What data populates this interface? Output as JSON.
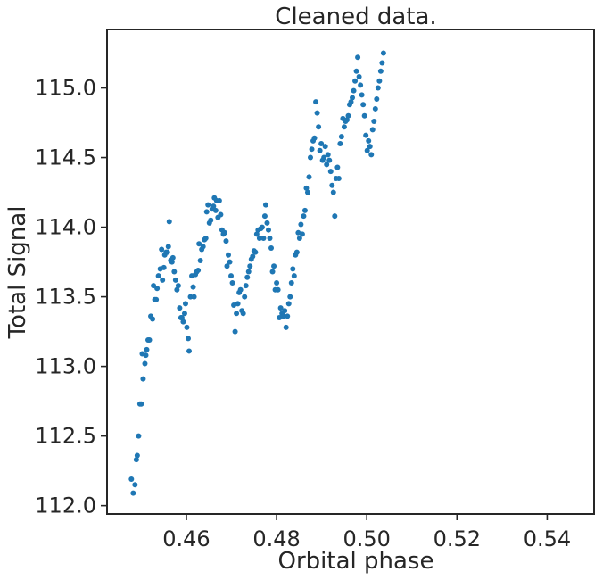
{
  "chart_data": {
    "type": "scatter",
    "title": "Cleaned data.",
    "xlabel": "Orbital phase",
    "ylabel": "Total Signal",
    "xlim": [
      0.4424,
      0.5504
    ],
    "ylim": [
      111.94,
      115.42
    ],
    "xticks": [
      0.46,
      0.48,
      0.5,
      0.52,
      0.54
    ],
    "xtick_labels": [
      "0.46",
      "0.48",
      "0.50",
      "0.52",
      "0.54"
    ],
    "yticks": [
      112.0,
      112.5,
      113.0,
      113.5,
      114.0,
      114.5,
      115.0
    ],
    "ytick_labels": [
      "112.0",
      "112.5",
      "113.0",
      "113.5",
      "114.0",
      "114.5",
      "115.0"
    ],
    "grid": false,
    "marker_color": "#1f77b4",
    "series": [
      {
        "points": [
          [
            0.4478,
            112.19
          ],
          [
            0.4482,
            112.09
          ],
          [
            0.4486,
            112.15
          ],
          [
            0.4489,
            112.33
          ],
          [
            0.4491,
            112.36
          ],
          [
            0.4494,
            112.5
          ],
          [
            0.4497,
            112.73
          ],
          [
            0.45,
            112.73
          ],
          [
            0.4502,
            113.09
          ],
          [
            0.4504,
            112.91
          ],
          [
            0.4508,
            113.02
          ],
          [
            0.451,
            113.08
          ],
          [
            0.4512,
            113.12
          ],
          [
            0.4515,
            113.19
          ],
          [
            0.4518,
            113.19
          ],
          [
            0.4521,
            113.36
          ],
          [
            0.4525,
            113.34
          ],
          [
            0.4527,
            113.58
          ],
          [
            0.453,
            113.48
          ],
          [
            0.4533,
            113.48
          ],
          [
            0.4535,
            113.56
          ],
          [
            0.4538,
            113.65
          ],
          [
            0.4542,
            113.7
          ],
          [
            0.4545,
            113.84
          ],
          [
            0.4547,
            113.62
          ],
          [
            0.455,
            113.71
          ],
          [
            0.4552,
            113.8
          ],
          [
            0.4555,
            113.82
          ],
          [
            0.4558,
            113.82
          ],
          [
            0.456,
            113.86
          ],
          [
            0.4562,
            114.04
          ],
          [
            0.4565,
            113.76
          ],
          [
            0.4568,
            113.75
          ],
          [
            0.457,
            113.78
          ],
          [
            0.4573,
            113.68
          ],
          [
            0.4576,
            113.62
          ],
          [
            0.4579,
            113.55
          ],
          [
            0.4582,
            113.58
          ],
          [
            0.4585,
            113.42
          ],
          [
            0.4588,
            113.35
          ],
          [
            0.459,
            113.35
          ],
          [
            0.4593,
            113.32
          ],
          [
            0.4596,
            113.38
          ],
          [
            0.4598,
            113.45
          ],
          [
            0.4601,
            113.28
          ],
          [
            0.4604,
            113.2
          ],
          [
            0.4606,
            113.11
          ],
          [
            0.4609,
            113.5
          ],
          [
            0.4612,
            113.65
          ],
          [
            0.4615,
            113.57
          ],
          [
            0.4617,
            113.5
          ],
          [
            0.462,
            113.66
          ],
          [
            0.4623,
            113.68
          ],
          [
            0.4626,
            113.69
          ],
          [
            0.4628,
            113.88
          ],
          [
            0.4631,
            113.76
          ],
          [
            0.4634,
            113.84
          ],
          [
            0.4637,
            113.86
          ],
          [
            0.464,
            113.91
          ],
          [
            0.4643,
            113.92
          ],
          [
            0.4645,
            114.11
          ],
          [
            0.4648,
            114.16
          ],
          [
            0.4651,
            114.03
          ],
          [
            0.4654,
            114.05
          ],
          [
            0.4657,
            114.13
          ],
          [
            0.466,
            114.15
          ],
          [
            0.4662,
            114.21
          ],
          [
            0.4665,
            114.12
          ],
          [
            0.4667,
            114.19
          ],
          [
            0.467,
            114.07
          ],
          [
            0.4673,
            114.19
          ],
          [
            0.4676,
            114.09
          ],
          [
            0.4679,
            113.98
          ],
          [
            0.4682,
            113.95
          ],
          [
            0.4685,
            113.96
          ],
          [
            0.4688,
            113.9
          ],
          [
            0.469,
            113.72
          ],
          [
            0.4693,
            113.8
          ],
          [
            0.4696,
            113.75
          ],
          [
            0.4699,
            113.65
          ],
          [
            0.4702,
            113.6
          ],
          [
            0.4705,
            113.44
          ],
          [
            0.4708,
            113.25
          ],
          [
            0.4711,
            113.38
          ],
          [
            0.4714,
            113.45
          ],
          [
            0.4717,
            113.53
          ],
          [
            0.472,
            113.55
          ],
          [
            0.4723,
            113.4
          ],
          [
            0.4726,
            113.38
          ],
          [
            0.4729,
            113.5
          ],
          [
            0.4732,
            113.58
          ],
          [
            0.4735,
            113.64
          ],
          [
            0.4738,
            113.68
          ],
          [
            0.4741,
            113.72
          ],
          [
            0.4744,
            113.77
          ],
          [
            0.4747,
            113.79
          ],
          [
            0.475,
            113.83
          ],
          [
            0.4753,
            113.82
          ],
          [
            0.4756,
            113.95
          ],
          [
            0.4759,
            113.98
          ],
          [
            0.4762,
            113.92
          ],
          [
            0.4765,
            113.99
          ],
          [
            0.4768,
            114.0
          ],
          [
            0.4771,
            113.92
          ],
          [
            0.4774,
            114.08
          ],
          [
            0.4776,
            114.16
          ],
          [
            0.4779,
            114.03
          ],
          [
            0.4782,
            113.98
          ],
          [
            0.4785,
            113.92
          ],
          [
            0.4788,
            113.85
          ],
          [
            0.4791,
            113.68
          ],
          [
            0.4794,
            113.72
          ],
          [
            0.4797,
            113.55
          ],
          [
            0.48,
            113.6
          ],
          [
            0.4803,
            113.55
          ],
          [
            0.4806,
            113.35
          ],
          [
            0.4809,
            113.42
          ],
          [
            0.4812,
            113.38
          ],
          [
            0.4815,
            113.36
          ],
          [
            0.4818,
            113.4
          ],
          [
            0.4821,
            113.28
          ],
          [
            0.4824,
            113.36
          ],
          [
            0.4827,
            113.45
          ],
          [
            0.483,
            113.5
          ],
          [
            0.4833,
            113.6
          ],
          [
            0.4836,
            113.7
          ],
          [
            0.4839,
            113.65
          ],
          [
            0.4842,
            113.8
          ],
          [
            0.4845,
            113.82
          ],
          [
            0.4848,
            113.96
          ],
          [
            0.4851,
            113.92
          ],
          [
            0.4854,
            114.02
          ],
          [
            0.4857,
            113.95
          ],
          [
            0.486,
            114.08
          ],
          [
            0.4863,
            114.12
          ],
          [
            0.4866,
            114.28
          ],
          [
            0.4869,
            114.25
          ],
          [
            0.4872,
            114.36
          ],
          [
            0.4875,
            114.5
          ],
          [
            0.4878,
            114.56
          ],
          [
            0.4881,
            114.62
          ],
          [
            0.4884,
            114.64
          ],
          [
            0.4887,
            114.9
          ],
          [
            0.489,
            114.82
          ],
          [
            0.4893,
            114.72
          ],
          [
            0.4896,
            114.55
          ],
          [
            0.4899,
            114.6
          ],
          [
            0.4902,
            114.48
          ],
          [
            0.4905,
            114.5
          ],
          [
            0.4908,
            114.58
          ],
          [
            0.4911,
            114.45
          ],
          [
            0.4914,
            114.52
          ],
          [
            0.4917,
            114.48
          ],
          [
            0.492,
            114.4
          ],
          [
            0.4923,
            114.3
          ],
          [
            0.4926,
            114.25
          ],
          [
            0.4929,
            114.08
          ],
          [
            0.4932,
            114.35
          ],
          [
            0.4935,
            114.43
          ],
          [
            0.4938,
            114.35
          ],
          [
            0.4941,
            114.6
          ],
          [
            0.4944,
            114.65
          ],
          [
            0.4947,
            114.78
          ],
          [
            0.495,
            114.72
          ],
          [
            0.4953,
            114.76
          ],
          [
            0.4956,
            114.77
          ],
          [
            0.4959,
            114.8
          ],
          [
            0.4962,
            114.88
          ],
          [
            0.4965,
            114.9
          ],
          [
            0.4968,
            114.93
          ],
          [
            0.4971,
            114.98
          ],
          [
            0.4974,
            115.05
          ],
          [
            0.4977,
            115.12
          ],
          [
            0.498,
            115.22
          ],
          [
            0.4983,
            115.08
          ],
          [
            0.4986,
            115.02
          ],
          [
            0.4989,
            114.95
          ],
          [
            0.4992,
            114.88
          ],
          [
            0.4995,
            114.8
          ],
          [
            0.4998,
            114.66
          ],
          [
            0.5001,
            114.55
          ],
          [
            0.5004,
            114.62
          ],
          [
            0.5007,
            114.58
          ],
          [
            0.501,
            114.52
          ],
          [
            0.5013,
            114.7
          ],
          [
            0.5016,
            114.76
          ],
          [
            0.5019,
            114.85
          ],
          [
            0.5022,
            114.92
          ],
          [
            0.5025,
            115.0
          ],
          [
            0.5028,
            115.05
          ],
          [
            0.5031,
            115.12
          ],
          [
            0.5034,
            115.18
          ],
          [
            0.5037,
            115.25
          ]
        ]
      }
    ]
  }
}
